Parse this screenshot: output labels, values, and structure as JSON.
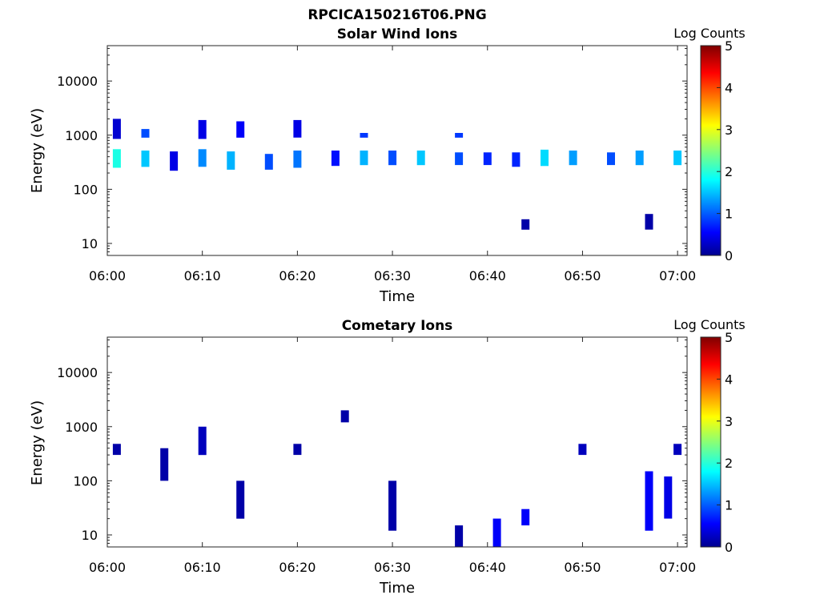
{
  "figure": {
    "title": "RPCICA150216T06.PNG"
  },
  "chart_data": [
    {
      "type": "heatmap",
      "title": "Solar Wind Ions",
      "xlabel": "Time",
      "ylabel": "Energy (eV)",
      "yscale": "log",
      "ylim": [
        6,
        45000
      ],
      "xlim": [
        "06:00",
        "07:01"
      ],
      "xticks": [
        "06:00",
        "06:10",
        "06:20",
        "06:30",
        "06:40",
        "06:50",
        "07:00"
      ],
      "yticks": [
        10,
        100,
        1000,
        10000
      ],
      "ytick_labels": [
        "10",
        "100",
        "1000",
        "10000"
      ],
      "colorbar": {
        "label": "Log Counts",
        "min": 0,
        "max": 5,
        "ticks": [
          "0",
          "1",
          "2",
          "3",
          "4",
          "5"
        ],
        "colormap": "jet"
      },
      "approx_features": [
        {
          "t": "06:01",
          "e_lo": 250,
          "e_hi": 550,
          "logc": 2.0
        },
        {
          "t": "06:01",
          "e_lo": 850,
          "e_hi": 2000,
          "logc": 0.4
        },
        {
          "t": "06:04",
          "e_lo": 260,
          "e_hi": 520,
          "logc": 1.6
        },
        {
          "t": "06:04",
          "e_lo": 900,
          "e_hi": 1300,
          "logc": 1.0
        },
        {
          "t": "06:07",
          "e_lo": 220,
          "e_hi": 500,
          "logc": 0.5
        },
        {
          "t": "06:10",
          "e_lo": 260,
          "e_hi": 550,
          "logc": 1.3
        },
        {
          "t": "06:10",
          "e_lo": 850,
          "e_hi": 1900,
          "logc": 0.5
        },
        {
          "t": "06:13",
          "e_lo": 230,
          "e_hi": 500,
          "logc": 1.5
        },
        {
          "t": "06:14",
          "e_lo": 900,
          "e_hi": 1800,
          "logc": 0.6
        },
        {
          "t": "06:17",
          "e_lo": 230,
          "e_hi": 450,
          "logc": 1.0
        },
        {
          "t": "06:20",
          "e_lo": 250,
          "e_hi": 520,
          "logc": 1.2
        },
        {
          "t": "06:20",
          "e_lo": 900,
          "e_hi": 1900,
          "logc": 0.5
        },
        {
          "t": "06:24",
          "e_lo": 270,
          "e_hi": 520,
          "logc": 0.7
        },
        {
          "t": "06:27",
          "e_lo": 280,
          "e_hi": 520,
          "logc": 1.5
        },
        {
          "t": "06:27",
          "e_lo": 900,
          "e_hi": 1100,
          "logc": 0.9
        },
        {
          "t": "06:30",
          "e_lo": 280,
          "e_hi": 520,
          "logc": 1.0
        },
        {
          "t": "06:33",
          "e_lo": 280,
          "e_hi": 520,
          "logc": 1.6
        },
        {
          "t": "06:37",
          "e_lo": 280,
          "e_hi": 480,
          "logc": 1.0
        },
        {
          "t": "06:37",
          "e_lo": 900,
          "e_hi": 1100,
          "logc": 0.9
        },
        {
          "t": "06:40",
          "e_lo": 280,
          "e_hi": 480,
          "logc": 0.8
        },
        {
          "t": "06:43",
          "e_lo": 260,
          "e_hi": 480,
          "logc": 0.8
        },
        {
          "t": "06:44",
          "e_lo": 18,
          "e_hi": 28,
          "logc": 0.2
        },
        {
          "t": "06:46",
          "e_lo": 270,
          "e_hi": 540,
          "logc": 1.7
        },
        {
          "t": "06:49",
          "e_lo": 280,
          "e_hi": 520,
          "logc": 1.4
        },
        {
          "t": "06:53",
          "e_lo": 280,
          "e_hi": 480,
          "logc": 1.0
        },
        {
          "t": "06:56",
          "e_lo": 280,
          "e_hi": 520,
          "logc": 1.4
        },
        {
          "t": "06:57",
          "e_lo": 18,
          "e_hi": 35,
          "logc": 0.2
        },
        {
          "t": "07:00",
          "e_lo": 280,
          "e_hi": 520,
          "logc": 1.6
        }
      ]
    },
    {
      "type": "heatmap",
      "title": "Cometary Ions",
      "xlabel": "Time",
      "ylabel": "Energy (eV)",
      "yscale": "log",
      "ylim": [
        6,
        45000
      ],
      "xlim": [
        "06:00",
        "07:01"
      ],
      "xticks": [
        "06:00",
        "06:10",
        "06:20",
        "06:30",
        "06:40",
        "06:50",
        "07:00"
      ],
      "yticks": [
        10,
        100,
        1000,
        10000
      ],
      "ytick_labels": [
        "10",
        "100",
        "1000",
        "10000"
      ],
      "colorbar": {
        "label": "Log Counts",
        "min": 0,
        "max": 5,
        "ticks": [
          "0",
          "1",
          "2",
          "3",
          "4",
          "5"
        ],
        "colormap": "jet"
      },
      "approx_features": [
        {
          "t": "06:01",
          "e_lo": 300,
          "e_hi": 480,
          "logc": 0.2
        },
        {
          "t": "06:06",
          "e_lo": 100,
          "e_hi": 400,
          "logc": 0.2
        },
        {
          "t": "06:10",
          "e_lo": 300,
          "e_hi": 1000,
          "logc": 0.3
        },
        {
          "t": "06:14",
          "e_lo": 20,
          "e_hi": 100,
          "logc": 0.2
        },
        {
          "t": "06:20",
          "e_lo": 300,
          "e_hi": 480,
          "logc": 0.2
        },
        {
          "t": "06:25",
          "e_lo": 1200,
          "e_hi": 2000,
          "logc": 0.2
        },
        {
          "t": "06:30",
          "e_lo": 12,
          "e_hi": 100,
          "logc": 0.2
        },
        {
          "t": "06:37",
          "e_lo": 6,
          "e_hi": 15,
          "logc": 0.2
        },
        {
          "t": "06:41",
          "e_lo": 6,
          "e_hi": 20,
          "logc": 0.6
        },
        {
          "t": "06:44",
          "e_lo": 15,
          "e_hi": 30,
          "logc": 0.6
        },
        {
          "t": "06:50",
          "e_lo": 300,
          "e_hi": 480,
          "logc": 0.3
        },
        {
          "t": "06:57",
          "e_lo": 12,
          "e_hi": 150,
          "logc": 0.6
        },
        {
          "t": "06:59",
          "e_lo": 20,
          "e_hi": 120,
          "logc": 0.5
        },
        {
          "t": "07:00",
          "e_lo": 300,
          "e_hi": 480,
          "logc": 0.3
        }
      ]
    }
  ]
}
